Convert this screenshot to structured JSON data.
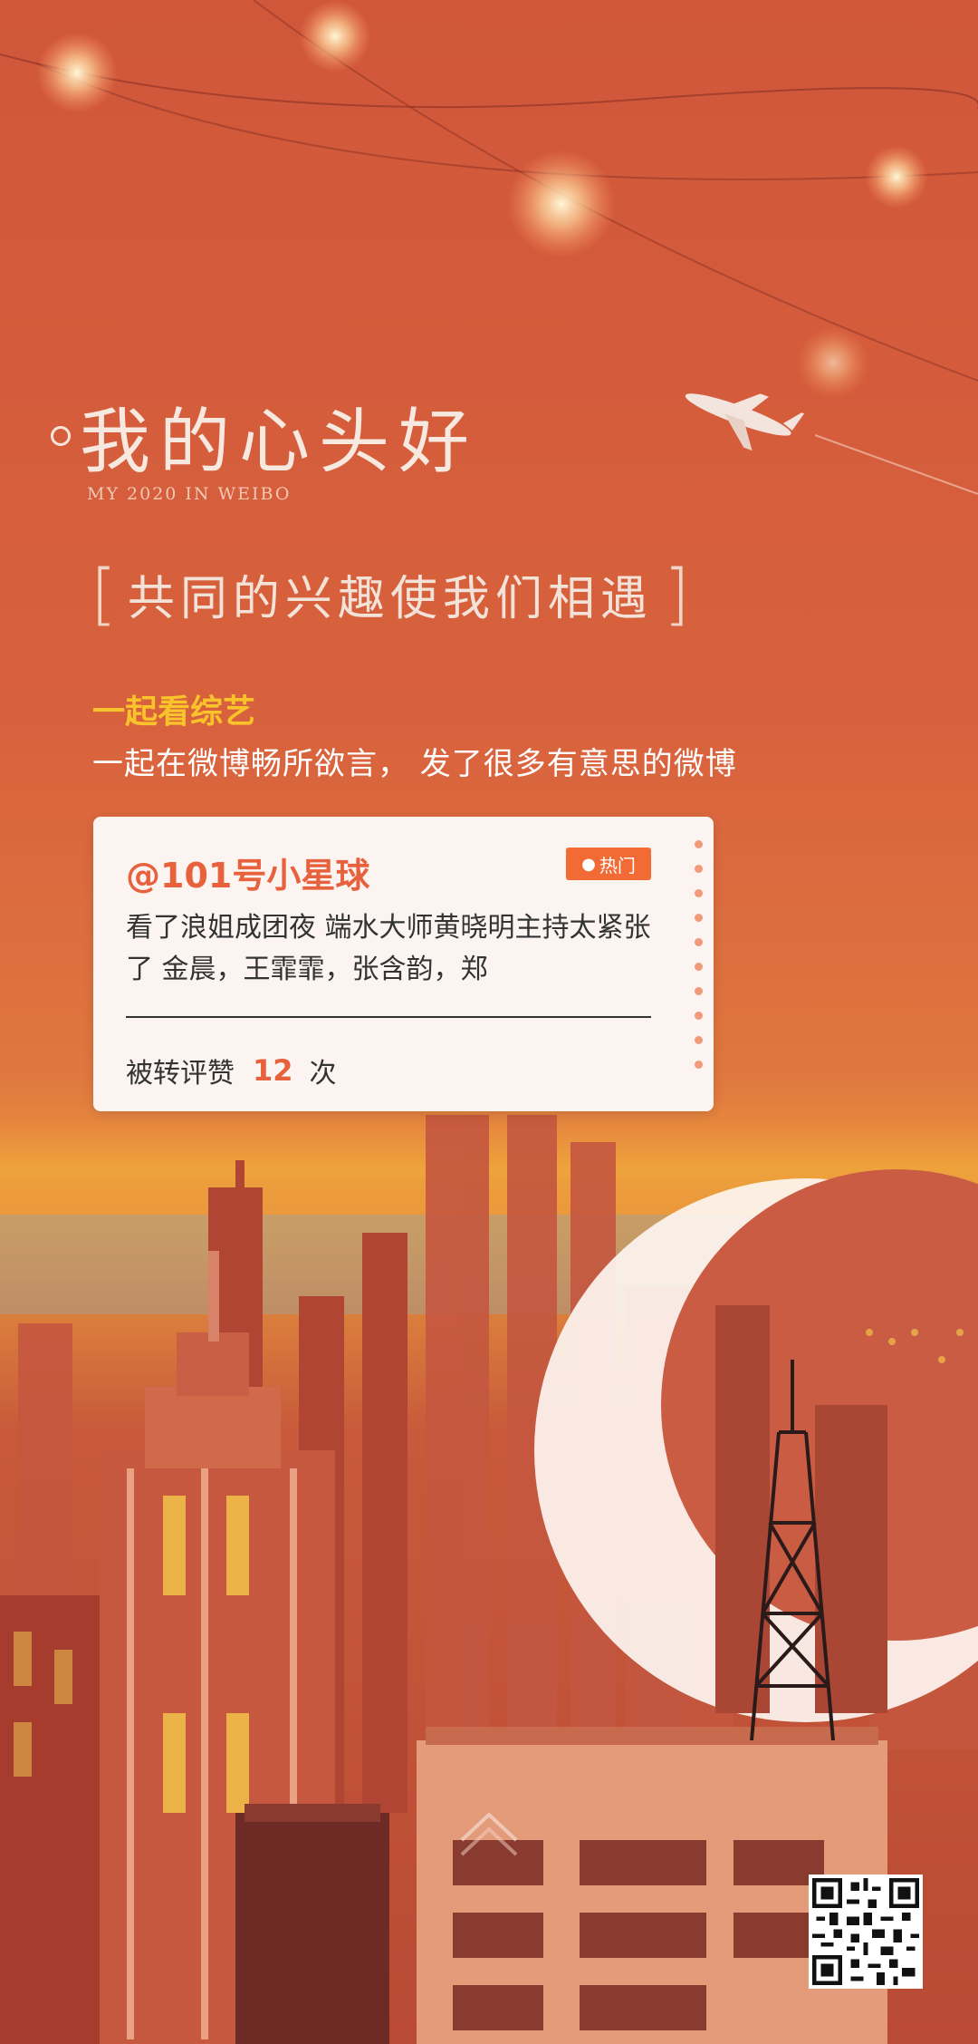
{
  "poster": {
    "title": "我的心头好",
    "subtitle_en": "MY 2020 IN WEIBO",
    "slogan_open": "[",
    "slogan": "共同的兴趣使我们相遇",
    "slogan_close": "]",
    "section_title": "一起看综艺",
    "section_desc": "一起在微博畅所欲言， 发了很多有意思的微博"
  },
  "card": {
    "user": "@101号小星球",
    "badge": "热门",
    "text": "看了浪姐成团夜 端水大师黄晓明主持太紧张了 金晨，王霏霏，张含韵，郑",
    "stats_label": "被转评赞",
    "stats_count": "12",
    "stats_unit": "次"
  },
  "colors": {
    "accent": "#e8613d",
    "highlight": "#f9c32b",
    "badge": "#f26b35"
  }
}
